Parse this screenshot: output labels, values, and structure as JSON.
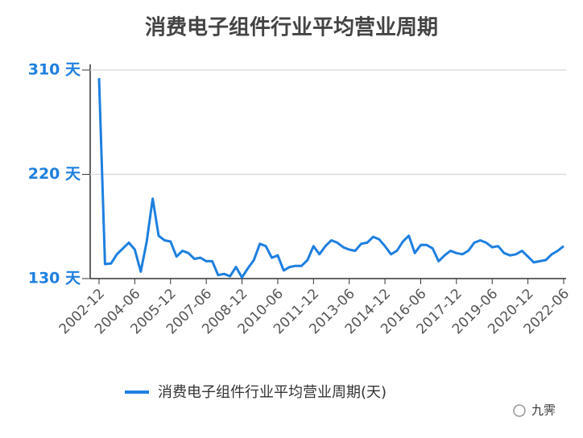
{
  "chart_data": {
    "type": "line",
    "title": "消费电子组件行业平均营业周期",
    "categories": [
      "2002-12",
      null,
      null,
      null,
      null,
      null,
      "2004-06",
      null,
      null,
      null,
      null,
      null,
      "2005-12",
      null,
      null,
      null,
      null,
      null,
      "2007-06",
      null,
      null,
      null,
      null,
      null,
      "2008-12",
      null,
      null,
      null,
      null,
      null,
      "2010-06",
      null,
      null,
      null,
      null,
      null,
      "2011-12",
      null,
      null,
      null,
      null,
      null,
      "2013-06",
      null,
      null,
      null,
      null,
      null,
      "2014-12",
      null,
      null,
      null,
      null,
      null,
      "2016-06",
      null,
      null,
      null,
      null,
      null,
      "2017-12",
      null,
      null,
      null,
      null,
      null,
      "2019-06",
      null,
      null,
      null,
      null,
      null,
      "2020-12",
      null,
      null,
      null,
      null,
      null,
      "2022-06"
    ],
    "series": [
      {
        "name": "消费电子组件行业平均营业周期(天)",
        "color": "#1e7fe0",
        "values": [
          303,
          142.5,
          143,
          151,
          156,
          161,
          155,
          136,
          162,
          199,
          167,
          163,
          162,
          149,
          154,
          152,
          147,
          148,
          145,
          145,
          133,
          134,
          132,
          140,
          131,
          139,
          146,
          160,
          158,
          148,
          150,
          137,
          140,
          141,
          141,
          146,
          158,
          151,
          158,
          163,
          161,
          157,
          155,
          154,
          160,
          161,
          166,
          164,
          158,
          151,
          154,
          162,
          167,
          152,
          159,
          159,
          156,
          145,
          150,
          154,
          152,
          151,
          154,
          161,
          163,
          161,
          157,
          158,
          152,
          150,
          151,
          154,
          149,
          144,
          145,
          146,
          151,
          154,
          158
        ]
      }
    ],
    "ylim": [
      130,
      310
    ],
    "yticks": [
      {
        "value": 130,
        "label": "130 天"
      },
      {
        "value": 220,
        "label": "220 天"
      },
      {
        "value": 310,
        "label": "310 天"
      }
    ],
    "grid": true,
    "legend": "bottom",
    "watermark": "九霁"
  }
}
